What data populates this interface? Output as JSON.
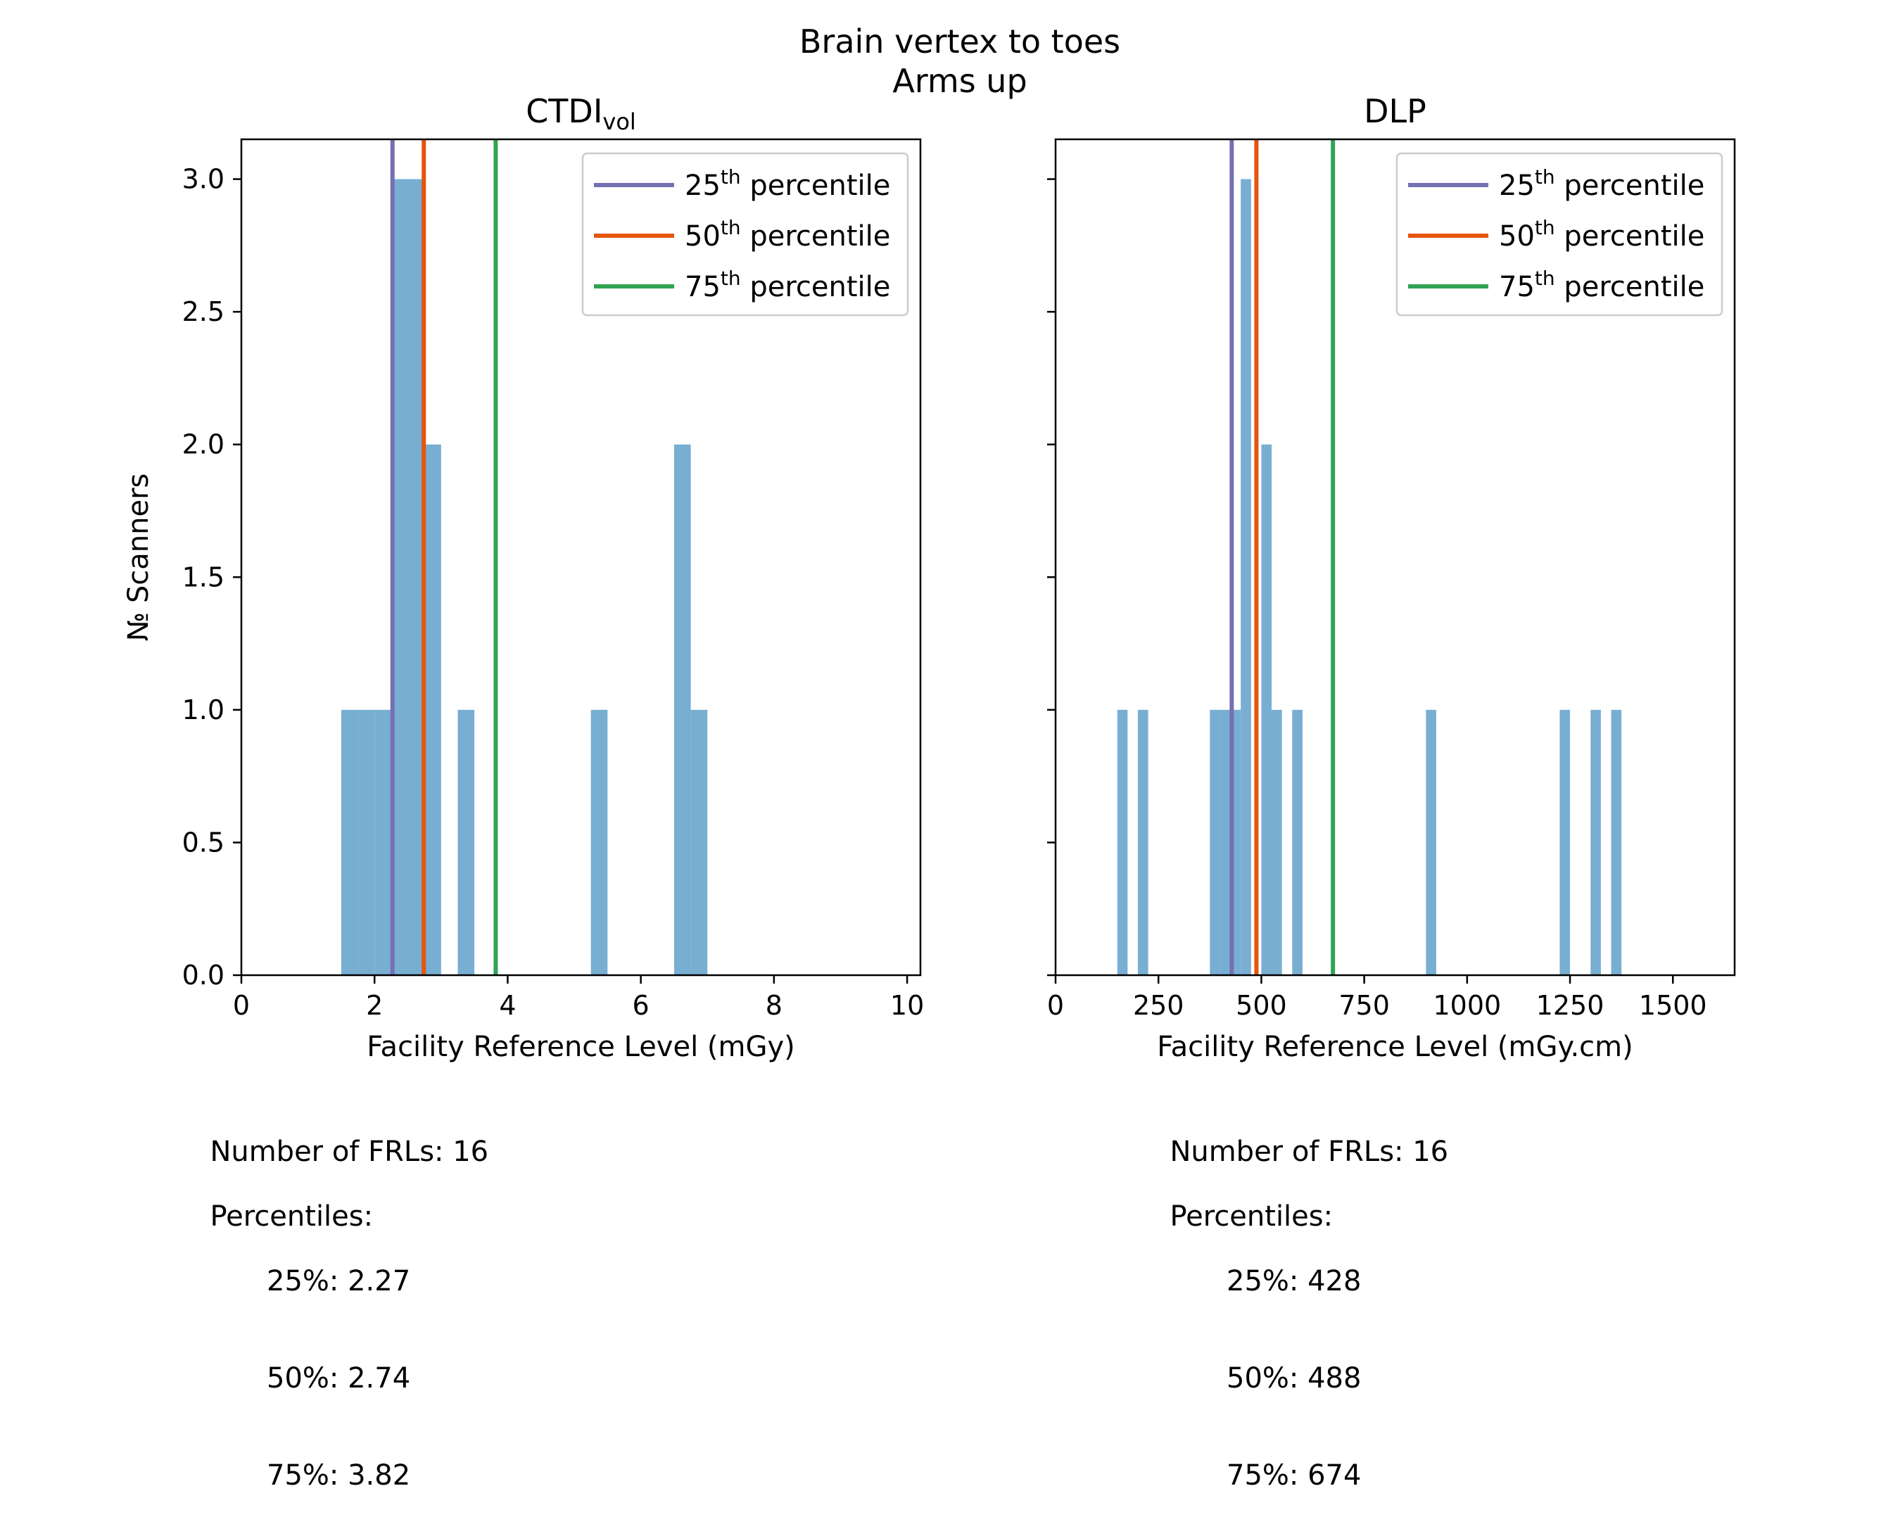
{
  "figure": {
    "title_line1": "Brain vertex to toes",
    "title_line2": "Arms up"
  },
  "colors": {
    "bar": "#79aed3",
    "p25": "#7570b3",
    "p50": "#e6550d",
    "p75": "#31a354"
  },
  "legend": {
    "entries": [
      {
        "num": "25",
        "sup": "th",
        "text": " percentile",
        "key": "p25"
      },
      {
        "num": "50",
        "sup": "th",
        "text": " percentile",
        "key": "p50"
      },
      {
        "num": "75",
        "sup": "th",
        "text": " percentile",
        "key": "p75"
      }
    ],
    "placement": "top-right"
  },
  "chart_data": [
    {
      "type": "bar",
      "title": "CTDI",
      "title_sub": "vol",
      "xlabel": "Facility Reference Level (mGy)",
      "ylabel": "№ Scanners",
      "xlim": [
        0,
        10.2
      ],
      "ylim": [
        0,
        3.15
      ],
      "xticks": [
        0,
        2,
        4,
        6,
        8,
        10
      ],
      "xtick_labels": [
        "0",
        "2",
        "4",
        "6",
        "8",
        "10"
      ],
      "yticks": [
        0,
        0.5,
        1,
        1.5,
        2,
        2.5,
        3
      ],
      "ytick_labels": [
        "0.0",
        "0.5",
        "1.0",
        "1.5",
        "2.0",
        "2.5",
        "3.0"
      ],
      "bin_width": 0.25,
      "bins": [
        {
          "x0": 1.5,
          "count": 1
        },
        {
          "x0": 1.75,
          "count": 1
        },
        {
          "x0": 2.0,
          "count": 1
        },
        {
          "x0": 2.25,
          "count": 3
        },
        {
          "x0": 2.5,
          "count": 3
        },
        {
          "x0": 2.75,
          "count": 2
        },
        {
          "x0": 3.25,
          "count": 1
        },
        {
          "x0": 5.25,
          "count": 1
        },
        {
          "x0": 6.5,
          "count": 2
        },
        {
          "x0": 6.75,
          "count": 1
        }
      ],
      "percentiles": {
        "p25": 2.27,
        "p50": 2.74,
        "p75": 3.82
      }
    },
    {
      "type": "bar",
      "title": "DLP",
      "title_sub": "",
      "xlabel": "Facility Reference Level (mGy.cm)",
      "ylabel": "",
      "xlim": [
        0,
        1650
      ],
      "ylim": [
        0,
        3.15
      ],
      "xticks": [
        0,
        250,
        500,
        750,
        1000,
        1250,
        1500
      ],
      "xtick_labels": [
        "0",
        "250",
        "500",
        "750",
        "1000",
        "1250",
        "1500"
      ],
      "yticks": [
        0,
        0.5,
        1,
        1.5,
        2,
        2.5,
        3
      ],
      "ytick_labels": [],
      "bin_width": 25,
      "bins": [
        {
          "x0": 150,
          "count": 1
        },
        {
          "x0": 200,
          "count": 1
        },
        {
          "x0": 375,
          "count": 1
        },
        {
          "x0": 400,
          "count": 1
        },
        {
          "x0": 425,
          "count": 1
        },
        {
          "x0": 450,
          "count": 3
        },
        {
          "x0": 500,
          "count": 2
        },
        {
          "x0": 525,
          "count": 1
        },
        {
          "x0": 575,
          "count": 1
        },
        {
          "x0": 900,
          "count": 1
        },
        {
          "x0": 1225,
          "count": 1
        },
        {
          "x0": 1300,
          "count": 1
        },
        {
          "x0": 1350,
          "count": 1
        }
      ],
      "percentiles": {
        "p25": 428,
        "p50": 488,
        "p75": 674
      }
    }
  ],
  "stats": [
    {
      "count_line": "Number of FRLs: 16",
      "heading": "Percentiles:",
      "p25_line": "25%: 2.27",
      "p50_line": "50%: 2.74",
      "p75_line": "75%: 3.82"
    },
    {
      "count_line": "Number of FRLs: 16",
      "heading": "Percentiles:",
      "p25_line": "25%: 428",
      "p50_line": "50%: 488",
      "p75_line": "75%: 674"
    }
  ]
}
